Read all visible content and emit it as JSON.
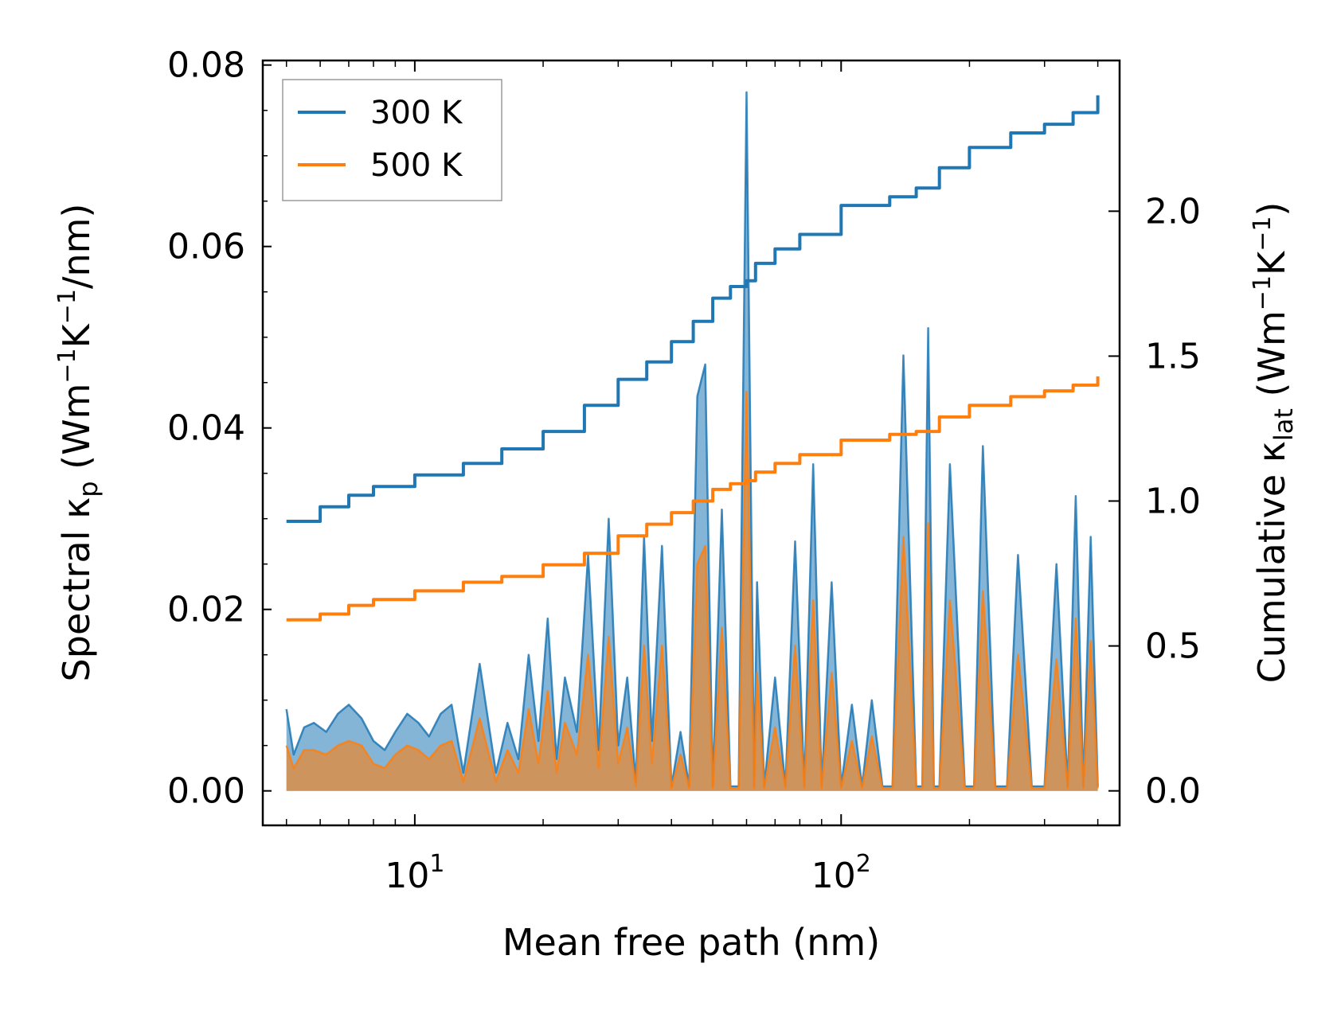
{
  "chart_data": {
    "type": "line",
    "xscale": "log",
    "xlim": [
      4.4,
      450
    ],
    "xlabel": "Mean free path (nm)",
    "xticks": [
      {
        "value": 10,
        "base": "10",
        "exp": "1"
      },
      {
        "value": 100,
        "base": "10",
        "exp": "2"
      }
    ],
    "y_left": {
      "label_main": "Spectral κ",
      "label_sub": "p",
      "label_units": " (Wm",
      "label_sup1": "−1",
      "label_k": "K",
      "label_sup2": "−1",
      "label_end": "/nm)",
      "lim": [
        -0.0038,
        0.0805
      ],
      "ticks": [
        "0.00",
        "0.02",
        "0.04",
        "0.06",
        "0.08"
      ],
      "tick_values": [
        0,
        0.02,
        0.04,
        0.06,
        0.08
      ]
    },
    "y_right": {
      "label_main": "Cumulative κ",
      "label_sub": "lat",
      "label_units": " (Wm",
      "label_sup1": "−1",
      "label_k": "K",
      "label_sup2": "−1",
      "label_end": ")",
      "lim": [
        -0.119,
        2.52
      ],
      "ticks": [
        "0.0",
        "0.5",
        "1.0",
        "1.5",
        "2.0"
      ],
      "tick_values": [
        0,
        0.5,
        1.0,
        1.5,
        2.0
      ]
    },
    "legend": {
      "position": "top-left"
    },
    "colors": {
      "300 K": "#1f77b4",
      "500 K": "#ff7f0e",
      "overlap_fill": "#c8956a"
    },
    "series": [
      {
        "name": "300 K",
        "axis": "right",
        "kind": "cumulative",
        "x": [
          5,
          6,
          7,
          8,
          10,
          13,
          16,
          20,
          25,
          30,
          35,
          40,
          45,
          50,
          55,
          60,
          63,
          70,
          80,
          100,
          130,
          150,
          170,
          200,
          250,
          300,
          350,
          400
        ],
        "y": [
          0.93,
          0.98,
          1.02,
          1.05,
          1.09,
          1.13,
          1.18,
          1.24,
          1.33,
          1.42,
          1.48,
          1.55,
          1.62,
          1.7,
          1.74,
          1.76,
          1.82,
          1.87,
          1.92,
          2.02,
          2.05,
          2.08,
          2.15,
          2.22,
          2.27,
          2.3,
          2.34,
          2.4
        ]
      },
      {
        "name": "500 K",
        "axis": "right",
        "kind": "cumulative",
        "x": [
          5,
          6,
          7,
          8,
          10,
          13,
          16,
          20,
          25,
          30,
          35,
          40,
          45,
          50,
          55,
          60,
          63,
          70,
          80,
          100,
          130,
          150,
          170,
          200,
          250,
          300,
          350,
          400
        ],
        "y": [
          0.59,
          0.61,
          0.64,
          0.66,
          0.69,
          0.72,
          0.74,
          0.78,
          0.82,
          0.88,
          0.92,
          0.96,
          1.0,
          1.04,
          1.06,
          1.07,
          1.1,
          1.13,
          1.16,
          1.21,
          1.23,
          1.24,
          1.29,
          1.33,
          1.36,
          1.38,
          1.4,
          1.43
        ]
      },
      {
        "name": "300 K spectral",
        "axis": "left",
        "kind": "spectral",
        "x": [
          5.0,
          5.2,
          5.5,
          5.8,
          6.2,
          6.6,
          7.0,
          7.5,
          8.0,
          8.5,
          9.0,
          9.6,
          10.2,
          10.8,
          11.5,
          12.2,
          13.0,
          14.2,
          15.5,
          16.5,
          17.5,
          18.5,
          19.5,
          20.5,
          21.5,
          22.5,
          24.0,
          25.5,
          27.0,
          28.5,
          30.0,
          31.5,
          33.0,
          34.5,
          36.0,
          38.0,
          40.0,
          42.0,
          44.0,
          46.0,
          48.0,
          50.0,
          52.5,
          55.0,
          57.5,
          60.0,
          62.5,
          63.5,
          66.0,
          70.0,
          74.0,
          78.0,
          82.0,
          86.0,
          90.0,
          95.0,
          100.0,
          106.0,
          112.0,
          118.0,
          125.0,
          132.0,
          140.0,
          150.0,
          155.0,
          160.0,
          165.0,
          170.0,
          180.0,
          195.0,
          205.0,
          215.0,
          230.0,
          245.0,
          260.0,
          280.0,
          300.0,
          320.0,
          340.0,
          355.0,
          370.0,
          385.0,
          400.0
        ],
        "y": [
          0.009,
          0.004,
          0.007,
          0.0075,
          0.0065,
          0.0085,
          0.0095,
          0.008,
          0.0055,
          0.0045,
          0.0065,
          0.0085,
          0.0075,
          0.006,
          0.0085,
          0.0095,
          0.002,
          0.014,
          0.002,
          0.0075,
          0.0035,
          0.015,
          0.0055,
          0.019,
          0.0035,
          0.0125,
          0.0065,
          0.026,
          0.0045,
          0.03,
          0.005,
          0.0125,
          0.001,
          0.028,
          0.0055,
          0.027,
          0.0005,
          0.0065,
          0.0005,
          0.0435,
          0.047,
          0.0005,
          0.031,
          0.0005,
          0.0005,
          0.077,
          0.0005,
          0.023,
          0.0005,
          0.0125,
          0.0005,
          0.0275,
          0.0005,
          0.036,
          0.0005,
          0.023,
          0.0005,
          0.0095,
          0.0005,
          0.01,
          0.0005,
          0.0005,
          0.048,
          0.0005,
          0.0005,
          0.051,
          0.0005,
          0.0005,
          0.036,
          0.0005,
          0.0005,
          0.038,
          0.0005,
          0.0005,
          0.026,
          0.0005,
          0.0005,
          0.025,
          0.0005,
          0.0325,
          0.0005,
          0.028,
          0.0005
        ]
      },
      {
        "name": "500 K spectral",
        "axis": "left",
        "kind": "spectral",
        "x": [
          5.0,
          5.2,
          5.5,
          5.8,
          6.2,
          6.6,
          7.0,
          7.5,
          8.0,
          8.5,
          9.0,
          9.6,
          10.2,
          10.8,
          11.5,
          12.2,
          13.0,
          14.2,
          15.5,
          16.5,
          17.5,
          18.5,
          19.5,
          20.5,
          21.5,
          22.5,
          24.0,
          25.5,
          27.0,
          28.5,
          30.0,
          31.5,
          33.0,
          34.5,
          36.0,
          38.0,
          40.0,
          42.0,
          44.0,
          46.0,
          48.0,
          50.0,
          52.5,
          55.0,
          57.5,
          60.0,
          62.5,
          63.5,
          66.0,
          70.0,
          74.0,
          78.0,
          82.0,
          86.0,
          90.0,
          95.0,
          100.0,
          106.0,
          112.0,
          118.0,
          125.0,
          132.0,
          140.0,
          150.0,
          155.0,
          160.0,
          165.0,
          170.0,
          180.0,
          195.0,
          205.0,
          215.0,
          230.0,
          245.0,
          260.0,
          280.0,
          300.0,
          320.0,
          340.0,
          355.0,
          370.0,
          385.0,
          400.0
        ],
        "y": [
          0.005,
          0.0025,
          0.0045,
          0.0045,
          0.004,
          0.005,
          0.0055,
          0.005,
          0.003,
          0.0025,
          0.004,
          0.005,
          0.0045,
          0.0035,
          0.005,
          0.0055,
          0.001,
          0.008,
          0.001,
          0.0045,
          0.002,
          0.009,
          0.003,
          0.011,
          0.002,
          0.0075,
          0.004,
          0.015,
          0.0025,
          0.017,
          0.003,
          0.007,
          0.0005,
          0.016,
          0.003,
          0.016,
          0.0003,
          0.004,
          0.0003,
          0.025,
          0.027,
          0.0003,
          0.018,
          0.0003,
          0.0003,
          0.044,
          0.0003,
          0.013,
          0.0003,
          0.007,
          0.0003,
          0.016,
          0.0003,
          0.021,
          0.0003,
          0.013,
          0.0003,
          0.0055,
          0.0003,
          0.006,
          0.0003,
          0.0003,
          0.028,
          0.0003,
          0.0003,
          0.0295,
          0.0003,
          0.0003,
          0.021,
          0.0003,
          0.0003,
          0.022,
          0.0003,
          0.0003,
          0.015,
          0.0003,
          0.0003,
          0.0145,
          0.0003,
          0.019,
          0.0003,
          0.0165,
          0.0003
        ]
      }
    ]
  }
}
